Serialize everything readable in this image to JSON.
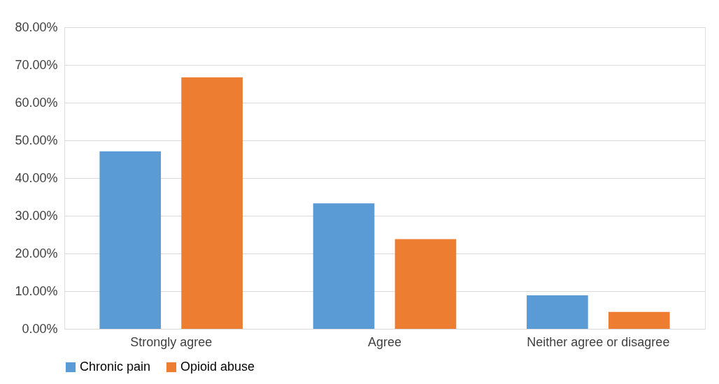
{
  "chart_data": {
    "type": "bar",
    "categories": [
      "Strongly agree",
      "Agree",
      "Neither agree or disagree"
    ],
    "series": [
      {
        "name": "Chronic pain",
        "color": "#5b9bd5",
        "values": [
          47.1,
          33.3,
          8.9
        ]
      },
      {
        "name": "Opioid abuse",
        "color": "#ed7d31",
        "values": [
          66.7,
          23.8,
          4.5
        ]
      }
    ],
    "ylim": [
      0,
      80
    ],
    "yticks": [
      {
        "value": 0,
        "label": "0.00%"
      },
      {
        "value": 10,
        "label": "10.00%"
      },
      {
        "value": 20,
        "label": "20.00%"
      },
      {
        "value": 30,
        "label": "30.00%"
      },
      {
        "value": 40,
        "label": "40.00%"
      },
      {
        "value": 50,
        "label": "50.00%"
      },
      {
        "value": 60,
        "label": "60.00%"
      },
      {
        "value": 70,
        "label": "70.00%"
      },
      {
        "value": 80,
        "label": "80.00%"
      }
    ],
    "grid": "y",
    "legend": "bottom"
  }
}
